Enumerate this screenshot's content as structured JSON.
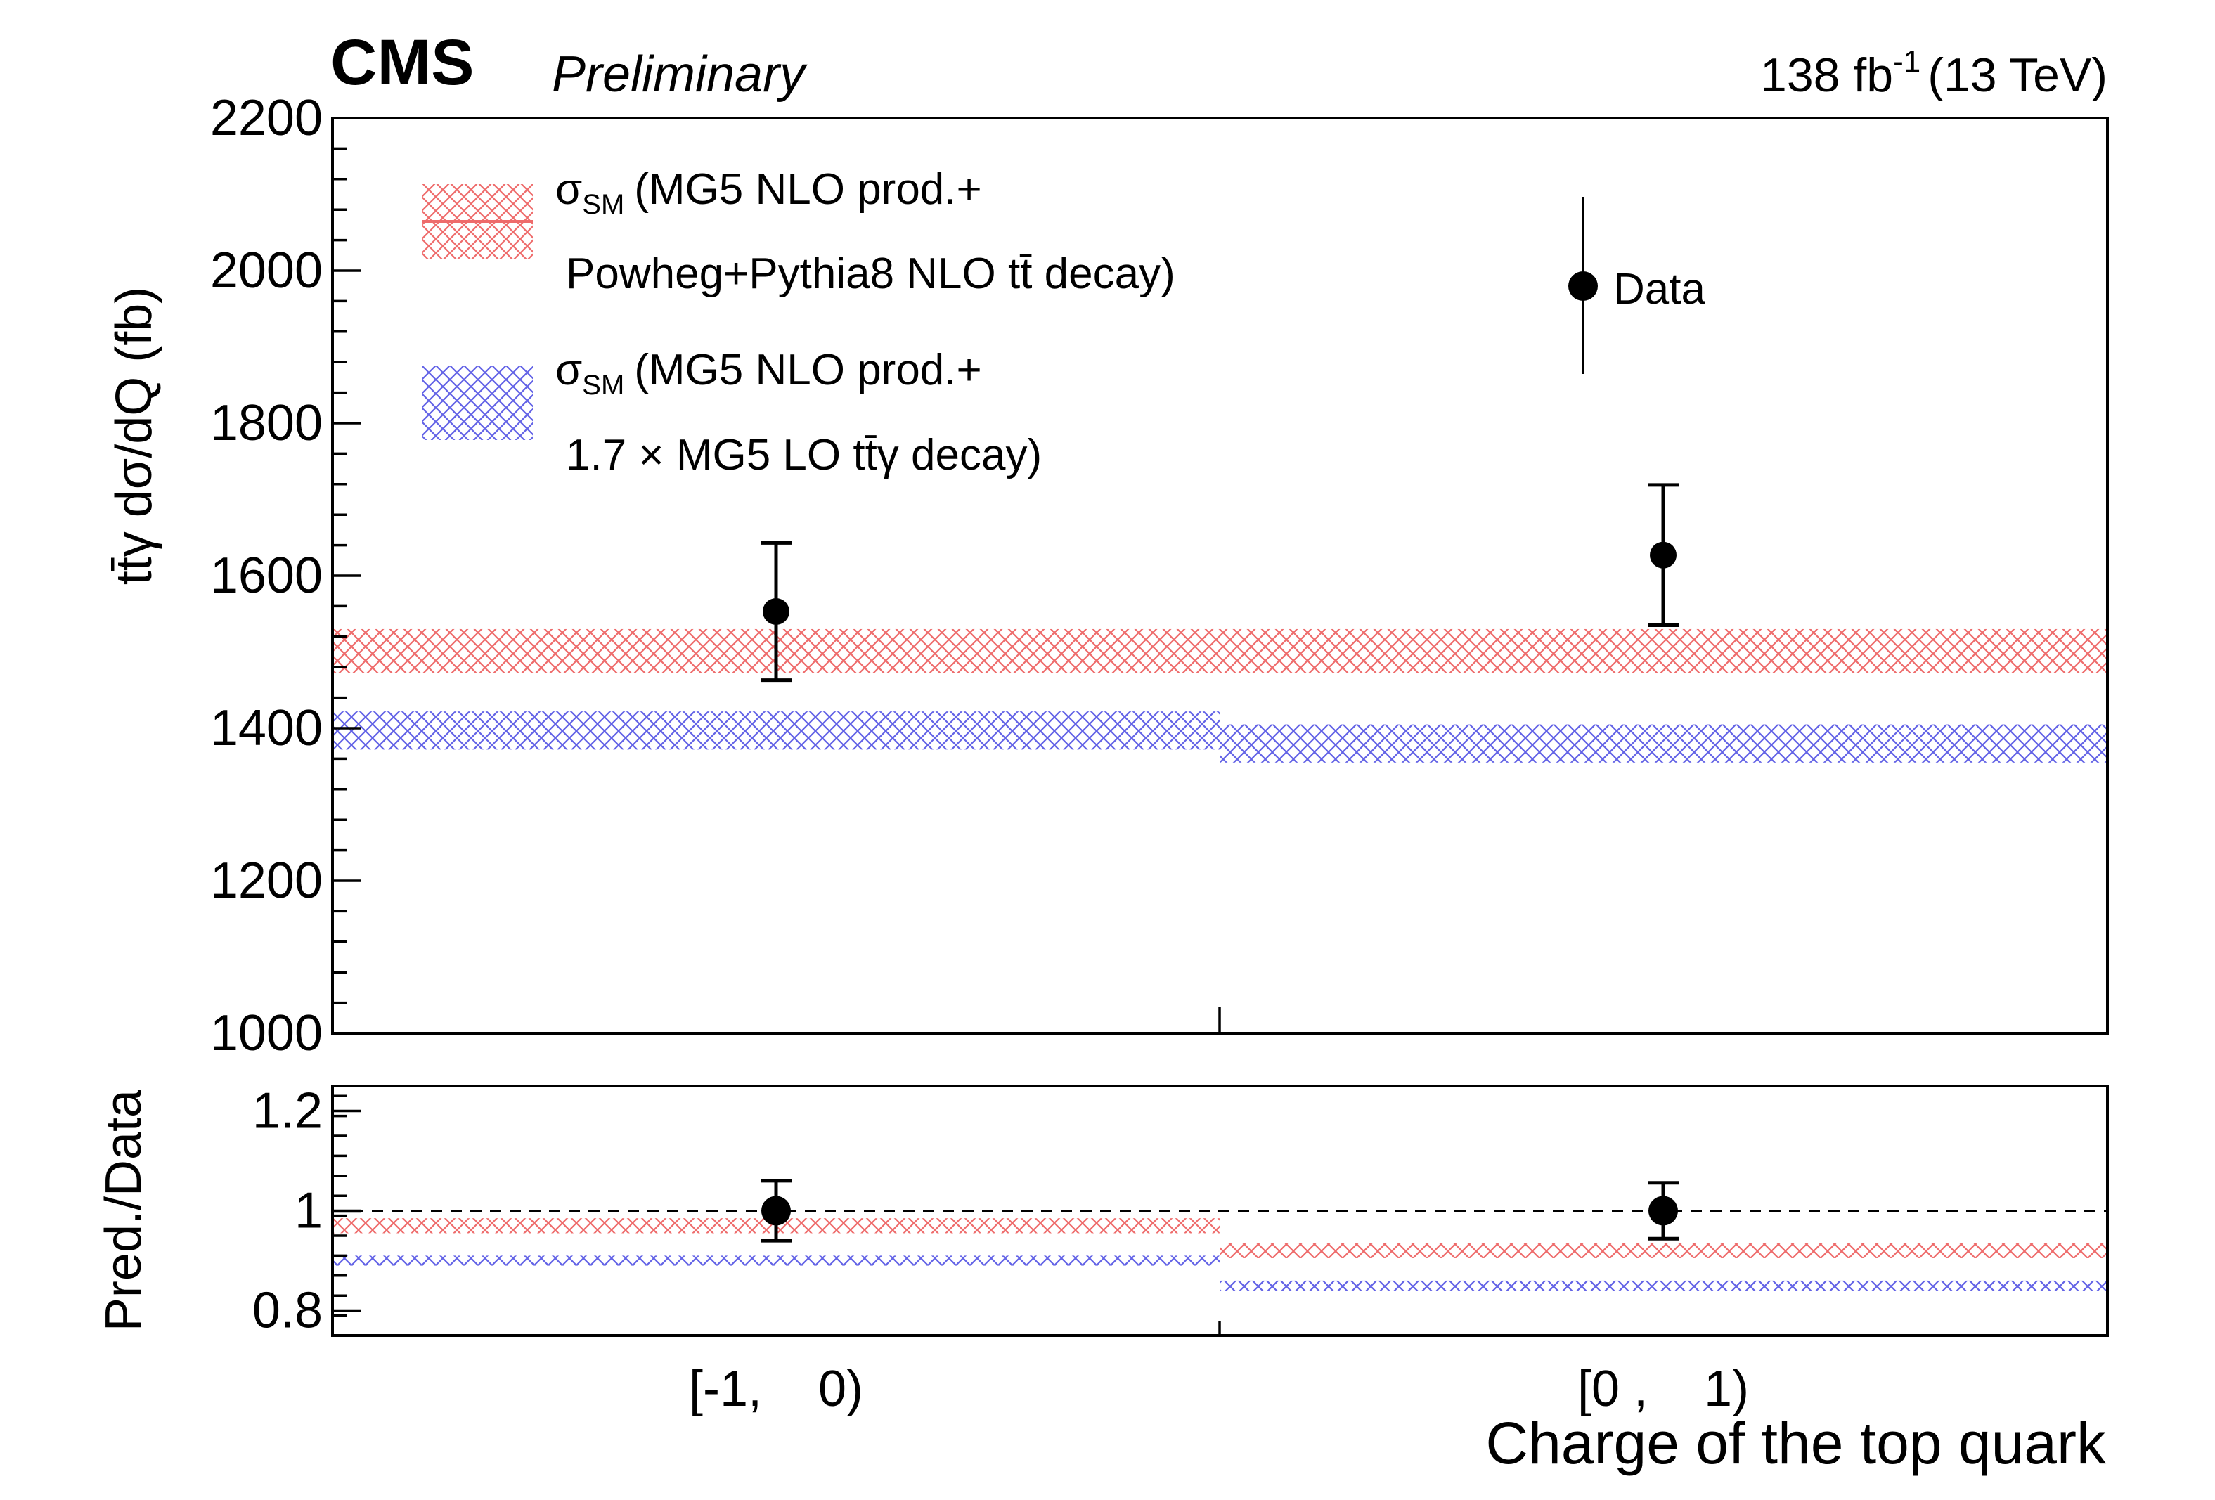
{
  "header": {
    "experiment": "CMS",
    "status": "Preliminary",
    "lumi_value": "138 fb",
    "lumi_exp": "-1",
    "energy": "(13 TeV)"
  },
  "chart_data": [
    {
      "type": "bar",
      "panel": "main",
      "title": "",
      "ylabel": "tt̄γ  dσ/dQ (fb)",
      "xlabel": "",
      "ylim": [
        1000,
        2200
      ],
      "yticks": [
        1000,
        1200,
        1400,
        1600,
        1800,
        2000,
        2200
      ],
      "ytick_labels": [
        "1000",
        "1200",
        "1400",
        "1600",
        "1800",
        "2000",
        "2200"
      ],
      "categories": [
        "[-1,    0)",
        "[0 ,    1)"
      ],
      "data": {
        "name": "Data",
        "values": [
          1553,
          1627
        ],
        "err_low": [
          90,
          92
        ],
        "err_high": [
          90,
          92
        ]
      },
      "series": [
        {
          "name": "σSM (MG5 NLO prod.+ Powheg+Pythia8 NLO tt̄ decay)",
          "color": "#ee6b6b",
          "values": [
            1500,
            1500
          ],
          "band_low": [
            1472,
            1472
          ],
          "band_high": [
            1530,
            1530
          ]
        },
        {
          "name": "σSM (MG5 NLO prod.+ 1.7×MG5 LO tt̄γ decay)",
          "color": "#6262e6",
          "values": [
            1397,
            1380
          ],
          "band_low": [
            1372,
            1355
          ],
          "band_high": [
            1422,
            1405
          ]
        }
      ],
      "legend": {
        "placement": "top-left",
        "red_line1_sym": "σ",
        "red_line1_sub": "SM",
        "red_line1_text": "(MG5 NLO prod.+",
        "red_line2": "Powheg+Pythia8 NLO tt̄ decay)",
        "blue_line1_sym": "σ",
        "blue_line1_sub": "SM",
        "blue_line1_text": "(MG5 NLO prod.+",
        "blue_line2": "1.7 × MG5 LO tt̄γ decay)",
        "data_label": "Data"
      }
    },
    {
      "type": "bar",
      "panel": "ratio",
      "ylabel": "Pred./Data",
      "xlabel": "Charge of the top quark",
      "ylim": [
        0.75,
        1.25
      ],
      "yticks": [
        0.8,
        1.0,
        1.2
      ],
      "ytick_labels": [
        "0.8",
        "1",
        "1.2"
      ],
      "categories": [
        "[-1,    0)",
        "[0 ,    1)"
      ],
      "reference_line": 1.0,
      "data": {
        "values": [
          1.0,
          1.0
        ],
        "err_low": [
          0.06,
          0.056
        ],
        "err_high": [
          0.06,
          0.056
        ]
      },
      "series": [
        {
          "name": "red prediction / data",
          "color": "#ee6b6b",
          "values": [
            0.97,
            0.92
          ],
          "band_low": [
            0.955,
            0.905
          ],
          "band_high": [
            0.985,
            0.935
          ]
        },
        {
          "name": "blue prediction / data",
          "color": "#6262e6",
          "values": [
            0.9,
            0.85
          ],
          "band_low": [
            0.89,
            0.84
          ],
          "band_high": [
            0.91,
            0.86
          ]
        }
      ]
    }
  ]
}
